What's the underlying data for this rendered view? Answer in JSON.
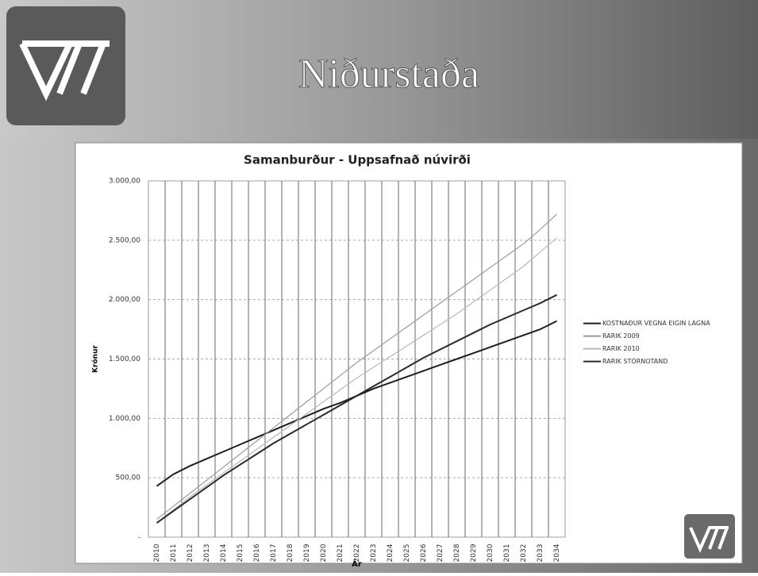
{
  "slide_title": "Niðurstaða",
  "chart_data": {
    "type": "line",
    "title": "Samanburður - Uppsafnað núvirði",
    "y_label": "Krónur",
    "x_label": "Ár",
    "categories": [
      "2010",
      "2011",
      "2012",
      "2013",
      "2014",
      "2015",
      "2016",
      "2017",
      "2018",
      "2019",
      "2020",
      "2021",
      "2022",
      "2023",
      "2024",
      "2025",
      "2026",
      "2027",
      "2028",
      "2029",
      "2030",
      "2031",
      "2032",
      "2033",
      "2034"
    ],
    "series": [
      {
        "name": "KOSTNAÐUR VEGNA EIGIN LAGNA",
        "color": "#1e1e1e",
        "values": [
          430,
          530,
          600,
          660,
          720,
          780,
          840,
          900,
          960,
          1020,
          1080,
          1130,
          1190,
          1250,
          1300,
          1350,
          1400,
          1450,
          1500,
          1550,
          1600,
          1650,
          1700,
          1750,
          1820
        ]
      },
      {
        "name": "RARIK 2009",
        "color": "#9a9a9a",
        "values": [
          150,
          260,
          370,
          480,
          590,
          700,
          810,
          920,
          1030,
          1140,
          1250,
          1360,
          1470,
          1570,
          1670,
          1770,
          1870,
          1970,
          2070,
          2170,
          2270,
          2370,
          2470,
          2590,
          2720
        ]
      },
      {
        "name": "RARIK 2010",
        "color": "#b8b8b8",
        "values": [
          120,
          230,
          340,
          440,
          540,
          640,
          740,
          840,
          940,
          1040,
          1140,
          1240,
          1340,
          1430,
          1520,
          1610,
          1700,
          1790,
          1880,
          1980,
          2080,
          2180,
          2280,
          2400,
          2520
        ]
      },
      {
        "name": "RARIK STÓRNOTAND",
        "color": "#2a2a2a",
        "values": [
          120,
          220,
          320,
          420,
          520,
          610,
          700,
          790,
          870,
          950,
          1030,
          1110,
          1190,
          1270,
          1350,
          1430,
          1510,
          1580,
          1650,
          1720,
          1790,
          1850,
          1910,
          1970,
          2040
        ]
      }
    ],
    "ylim": [
      0,
      3000
    ],
    "yticks": [
      {
        "value": 0,
        "label": "-"
      },
      {
        "value": 500,
        "label": "500,00"
      },
      {
        "value": 1000,
        "label": "1.000,00"
      },
      {
        "value": 1500,
        "label": "1.500,00"
      },
      {
        "value": 2000,
        "label": "2.000,00"
      },
      {
        "value": 2500,
        "label": "2.500,00"
      },
      {
        "value": 3000,
        "label": "3.000,00"
      }
    ],
    "grid": true,
    "legend": "right"
  }
}
